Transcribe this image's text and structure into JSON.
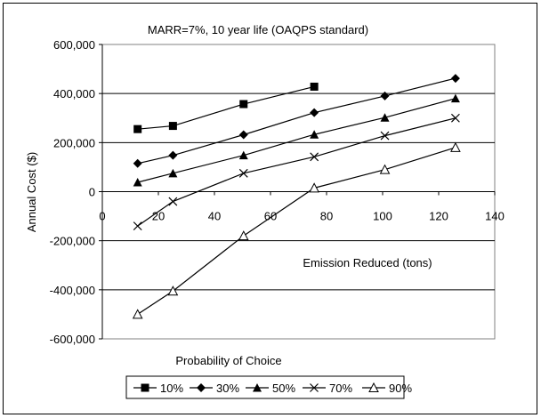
{
  "chart_data": {
    "type": "line",
    "title": "MARR=7%, 10 year life  (OAQPS  standard)",
    "xlabel": "Emission Reduced (tons)",
    "ylabel": "Annual Cost ($)",
    "annotation": "Probability of Choice",
    "xlim": [
      0,
      140
    ],
    "ylim": [
      -600000,
      600000
    ],
    "x_ticks": [
      0,
      20,
      40,
      60,
      80,
      100,
      120,
      140
    ],
    "y_ticks": [
      -600000,
      -400000,
      -200000,
      0,
      200000,
      400000,
      600000
    ],
    "x_tick_labels": [
      "0",
      "20",
      "40",
      "60",
      "80",
      "100",
      "120",
      "140"
    ],
    "y_tick_labels": [
      "-600,000",
      "-400,000",
      "-200,000",
      "0",
      "200,000",
      "400,000",
      "600,000"
    ],
    "grid": "horizontal",
    "legend_position": "bottom",
    "series": [
      {
        "name": "10%",
        "marker": "square",
        "x": [
          12.6,
          25.2,
          50.4,
          75.6
        ],
        "y": [
          255000,
          268000,
          357000,
          428000
        ]
      },
      {
        "name": "30%",
        "marker": "diamond",
        "x": [
          12.6,
          25.2,
          50.4,
          75.6,
          100.8,
          126
        ],
        "y": [
          115000,
          148000,
          232000,
          322000,
          390000,
          462000
        ]
      },
      {
        "name": "50%",
        "marker": "triangle",
        "x": [
          12.6,
          25.2,
          50.4,
          75.6,
          100.8,
          126
        ],
        "y": [
          38000,
          75000,
          148000,
          233000,
          302000,
          380000
        ]
      },
      {
        "name": "70%",
        "marker": "x",
        "x": [
          12.6,
          25.2,
          50.4,
          75.6,
          100.8,
          126
        ],
        "y": [
          -140000,
          -40000,
          75000,
          142000,
          228000,
          300000
        ]
      },
      {
        "name": "90%",
        "marker": "open-triangle",
        "x": [
          12.6,
          25.2,
          50.4,
          75.6,
          100.8,
          126
        ],
        "y": [
          -500000,
          -405000,
          -180000,
          15000,
          90000,
          180000
        ]
      }
    ]
  }
}
